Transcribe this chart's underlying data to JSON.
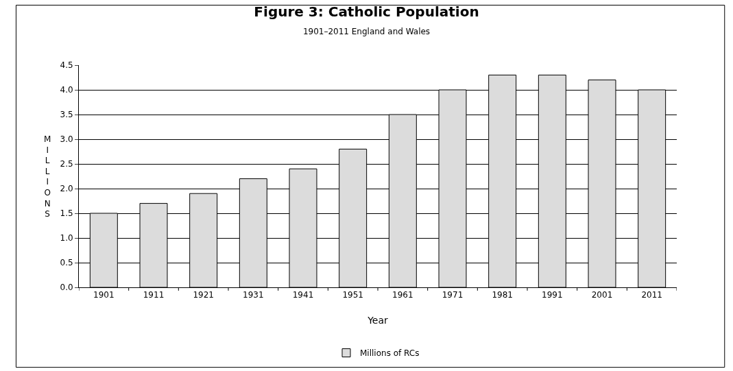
{
  "chart_data": {
    "type": "bar",
    "title": "Figure 3: Catholic Population",
    "subtitle": "1901–2011 England and Wales",
    "xlabel": "Year",
    "ylabel": "MILLIONS",
    "categories": [
      "1901",
      "1911",
      "1921",
      "1931",
      "1941",
      "1951",
      "1961",
      "1971",
      "1981",
      "1991",
      "2001",
      "2011"
    ],
    "series": [
      {
        "name": "Millions of RCs",
        "color": "#dcdcdc",
        "values": [
          1.5,
          1.7,
          1.9,
          2.2,
          2.4,
          2.8,
          3.5,
          4.0,
          4.3,
          4.3,
          4.2,
          4.0
        ]
      }
    ],
    "ylim": [
      0,
      4.5
    ],
    "yticks": [
      {
        "value": 0,
        "label": "0.0"
      },
      {
        "value": 0.5,
        "label": "0.5"
      },
      {
        "value": 1,
        "label": "1.0"
      },
      {
        "value": 1.5,
        "label": "1.5"
      },
      {
        "value": 2,
        "label": "2.0"
      },
      {
        "value": 2.5,
        "label": "2.5"
      },
      {
        "value": 3,
        "label": "3.0"
      },
      {
        "value": 3.5,
        "label": "3.5"
      },
      {
        "value": 4,
        "label": "4.0"
      },
      {
        "value": 4.5,
        "label": "4.5"
      }
    ],
    "grid": "y",
    "legend": "bottom"
  }
}
